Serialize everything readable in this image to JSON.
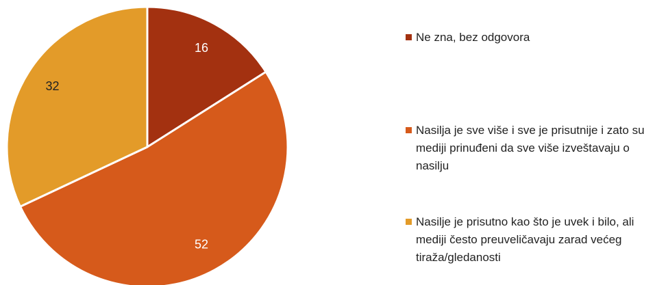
{
  "chart_data": {
    "type": "pie",
    "categories": [
      "Ne zna, bez odgovora",
      "Nasilja je sve više i sve je prisutnije i zato su mediji prinuđeni da sve više izveštavaju o nasilju",
      "Nasilje je prisutno kao što je uvek i bilo, ali mediji često preuveličavaju zarad većeg tiraža/gledanosti"
    ],
    "values": [
      16,
      52,
      32
    ],
    "colors": [
      "#a33110",
      "#d65a1b",
      "#e39b29"
    ],
    "legend": "right"
  }
}
